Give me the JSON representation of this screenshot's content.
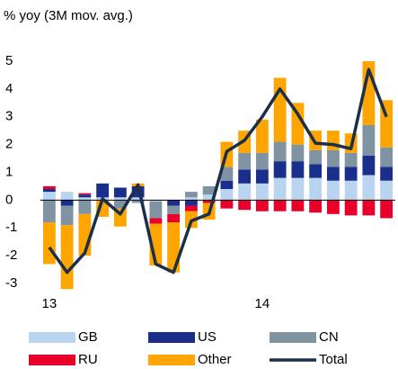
{
  "chart_data": {
    "type": "bar",
    "stacked": true,
    "title": "% yoy (3M mov. avg.)",
    "categories": [
      "13",
      null,
      null,
      null,
      null,
      null,
      null,
      null,
      null,
      null,
      null,
      null,
      "14",
      null,
      null,
      null,
      null,
      null,
      null,
      null
    ],
    "series": [
      {
        "name": "GB",
        "color": "#b8d4ee",
        "values": [
          0.3,
          0.3,
          0.1,
          0.1,
          0.1,
          0.1,
          -0.05,
          0,
          0.1,
          0.2,
          0.4,
          0.6,
          0.6,
          0.8,
          0.8,
          0.8,
          0.7,
          0.7,
          0.9,
          0.7
        ]
      },
      {
        "name": "US",
        "color": "#1a2f8c",
        "values": [
          0.1,
          -0.2,
          0.1,
          0.5,
          0.35,
          0.4,
          0,
          -0.2,
          -0.2,
          0,
          0.3,
          0.5,
          0.5,
          0.6,
          0.6,
          0.5,
          0.5,
          0.5,
          0.7,
          0.5
        ]
      },
      {
        "name": "CN",
        "color": "#7f93a3",
        "values": [
          -0.8,
          -0.7,
          -0.5,
          0,
          -0.3,
          -0.1,
          -0.6,
          -0.3,
          0.2,
          0.3,
          0.5,
          0.6,
          0.6,
          0.7,
          0.6,
          0.5,
          0.6,
          0.5,
          1.1,
          0.7
        ]
      },
      {
        "name": "RU",
        "color": "#e8002a",
        "values": [
          0.1,
          0,
          0.05,
          0,
          0,
          0,
          -0.2,
          -0.3,
          -0.2,
          -0.1,
          -0.3,
          -0.35,
          -0.4,
          -0.4,
          -0.4,
          -0.45,
          -0.5,
          -0.55,
          -0.55,
          -0.65
        ]
      },
      {
        "name": "Other",
        "color": "#ffa500",
        "values": [
          -1.5,
          -2.3,
          -1.5,
          -0.6,
          -0.65,
          0.1,
          -1.5,
          -1.8,
          -0.6,
          -0.6,
          0.9,
          0.8,
          1.2,
          2.3,
          1.5,
          0.7,
          0.7,
          0.7,
          2.3,
          1.7
        ]
      },
      {
        "name": "Total",
        "type": "line",
        "color": "#1a2f4a",
        "values": [
          -1.7,
          -2.6,
          -1.9,
          0.05,
          -0.5,
          0.55,
          -2.3,
          -2.6,
          -0.75,
          -0.5,
          1.75,
          2.15,
          3.0,
          4.0,
          3.1,
          2.05,
          2.0,
          1.85,
          4.7,
          3.0
        ]
      }
    ],
    "ylim": [
      -3,
      5
    ],
    "yticks": [
      5,
      4,
      3,
      2,
      1,
      0,
      -1,
      -2,
      -3
    ]
  }
}
